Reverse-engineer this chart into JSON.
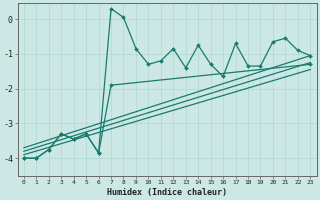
{
  "xlabel": "Humidex (Indice chaleur)",
  "background_color": "#cce8e4",
  "line_color": "#1a7a6e",
  "xlim": [
    -0.5,
    23.5
  ],
  "ylim": [
    -4.5,
    0.45
  ],
  "ytick_values": [
    0,
    -1,
    -2,
    -3,
    -4
  ],
  "series1_x": [
    0,
    1,
    2,
    3,
    4,
    5,
    6,
    7,
    8,
    9,
    10,
    11,
    12,
    13,
    14,
    15,
    16,
    17,
    18,
    19,
    20,
    21,
    22,
    23
  ],
  "series1_y": [
    -4.0,
    -4.0,
    -3.75,
    -3.3,
    -3.45,
    -3.3,
    -3.85,
    0.3,
    0.05,
    -0.85,
    -1.3,
    -1.2,
    -0.85,
    -1.4,
    -0.75,
    -1.3,
    -1.65,
    -0.7,
    -1.35,
    -1.35,
    -0.65,
    -0.55,
    -0.9,
    -1.05
  ],
  "series2_x": [
    0,
    1,
    2,
    3,
    4,
    5,
    6,
    7,
    23
  ],
  "series2_y": [
    -4.0,
    -4.0,
    -3.75,
    -3.3,
    -3.45,
    -3.3,
    -3.85,
    -1.9,
    -1.3
  ],
  "regression_lines": [
    {
      "x": [
        0,
        23
      ],
      "y": [
        -3.7,
        -1.05
      ]
    },
    {
      "x": [
        0,
        23
      ],
      "y": [
        -3.8,
        -1.25
      ]
    },
    {
      "x": [
        0,
        23
      ],
      "y": [
        -3.9,
        -1.45
      ]
    }
  ],
  "marker_indices_s1": [
    0,
    1,
    2,
    3,
    4,
    5,
    6,
    7,
    8,
    9,
    10,
    11,
    12,
    13,
    14,
    15,
    16,
    17,
    18,
    19,
    20,
    21,
    22,
    23
  ],
  "marker_indices_s2": [
    0,
    1,
    2,
    3,
    4,
    5,
    6,
    7,
    23
  ]
}
